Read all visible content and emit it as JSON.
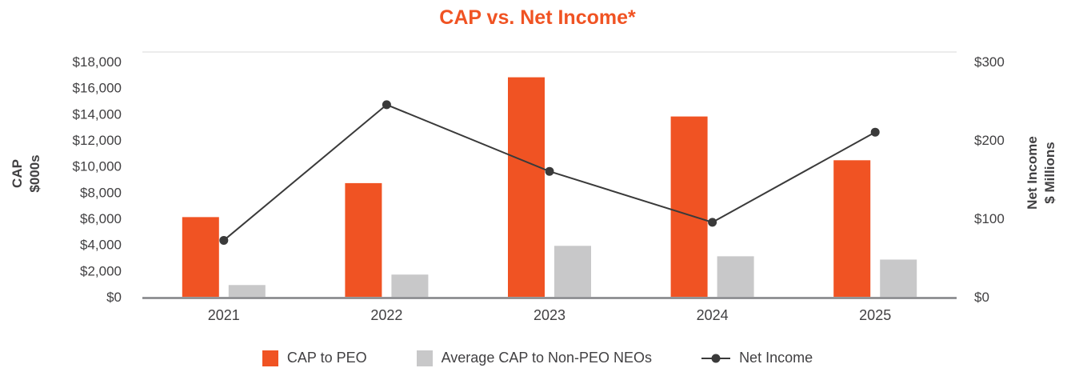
{
  "chart_data": {
    "type": "combo-bar-line",
    "title": "CAP vs. Net Income*",
    "title_color": "#F05323",
    "categories": [
      "2021",
      "2022",
      "2023",
      "2024",
      "2025"
    ],
    "bar_series": [
      {
        "name": "CAP to PEO",
        "axis": "left",
        "color": "#F05323",
        "values": [
          6100,
          8700,
          16800,
          13800,
          10450
        ]
      },
      {
        "name": "Average CAP to Non-PEO NEOs",
        "axis": "left",
        "color": "#C8C8C9",
        "values": [
          900,
          1700,
          3900,
          3100,
          2850
        ]
      }
    ],
    "line_series": [
      {
        "name": "Net Income",
        "axis": "right",
        "color": "#3A3A3A",
        "values": [
          72,
          245,
          160,
          95,
          210
        ]
      }
    ],
    "left_axis": {
      "label_line1": "CAP",
      "label_line2": "$000s",
      "min": 0,
      "max": 18000,
      "step": 2000,
      "tick_labels": [
        "$0",
        "$2,000",
        "$4,000",
        "$6,000",
        "$8,000",
        "$10,000",
        "$12,000",
        "$14,000",
        "$16,000",
        "$18,000"
      ]
    },
    "right_axis": {
      "label_line1": "Net Income",
      "label_line2": "$ Millions",
      "min": 0,
      "max": 300,
      "step": 100,
      "tick_labels": [
        "$0",
        "$100",
        "$200",
        "$300"
      ]
    },
    "grid": "off",
    "legend_position": "bottom"
  }
}
